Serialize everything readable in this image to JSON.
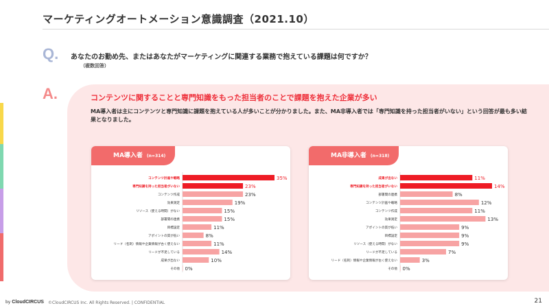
{
  "header": {
    "title": "マーケティングオートメーション意識調査（2021.10）"
  },
  "question": {
    "mark": "Q.",
    "text": "あなたのお勤め先、またはあなたがマーケティングに関連する業務で抱えている課題は何ですか？",
    "sub": "（複数回答）"
  },
  "answer": {
    "mark": "A.",
    "headline": "コンテンツに関することと専門知識をもった担当者のことで課題を抱えた企業が多い",
    "description": "MA導入者は主にコンテンツと専門知識に課題を抱えている人が多いことが分かりました。また、MA非導入者では「専門知識を持った担当者がいない」という回答が最も多い結果となりました。"
  },
  "colors": {
    "highlight": "#ee1c25",
    "bar": "#f7a3a3",
    "tab": "#f26b6b",
    "panel": "#fde7e7"
  },
  "chart_data": [
    {
      "type": "bar",
      "orientation": "horizontal",
      "title": "MA導入者",
      "n_label": "(n=314)",
      "categories": [
        "コンテンツ計画や戦略",
        "専門知識を持った担当者がいない",
        "コンテンツ作成",
        "効果測定",
        "リソース（使える時間）がない",
        "部署間の連携",
        "目標設定",
        "アポイントの質が低い",
        "リード（名刺）情報や企業情報が古く使えない",
        "リードが不足している",
        "成果が出ない",
        "その他"
      ],
      "values": [
        35,
        23,
        23,
        19,
        15,
        15,
        11,
        8,
        11,
        14,
        10,
        0
      ],
      "value_labels": [
        "35%",
        "23%",
        "23%",
        "19%",
        "15%",
        "15%",
        "11%",
        "8%",
        "11%",
        "14%",
        "10%",
        "0%"
      ],
      "highlight": [
        true,
        true,
        false,
        false,
        false,
        false,
        false,
        false,
        false,
        false,
        false,
        false
      ],
      "xlim": [
        0,
        35
      ]
    },
    {
      "type": "bar",
      "orientation": "horizontal",
      "title": "MA非導入者",
      "n_label": "(n=318)",
      "categories": [
        "成果が出ない",
        "専門知識を持った担当者がいない",
        "部署間の連携",
        "コンテンツ計画や戦略",
        "コンテンツ作成",
        "効果測定",
        "アポイントの質が低い",
        "目標設定",
        "リソース（使える時間）がない",
        "リードが不足している",
        "リード（名刺）情報や企業情報が古く使えない",
        "その他"
      ],
      "values": [
        11,
        14,
        8,
        12,
        11,
        13,
        9,
        9,
        9,
        7,
        3,
        0
      ],
      "value_labels": [
        "11%",
        "14%",
        "8%",
        "12%",
        "11%",
        "13%",
        "9%",
        "9%",
        "9%",
        "7%",
        "3%",
        "0%"
      ],
      "highlight": [
        true,
        true,
        false,
        false,
        false,
        false,
        false,
        false,
        false,
        false,
        false,
        false
      ],
      "xlim": [
        0,
        14
      ]
    }
  ],
  "footer": {
    "by": "by",
    "brand": "CloudCIRCUS",
    "copyright": "©CloudCIRCUS Inc. All Rights Reserved. | CONFIDENTIAL",
    "page": "21"
  }
}
